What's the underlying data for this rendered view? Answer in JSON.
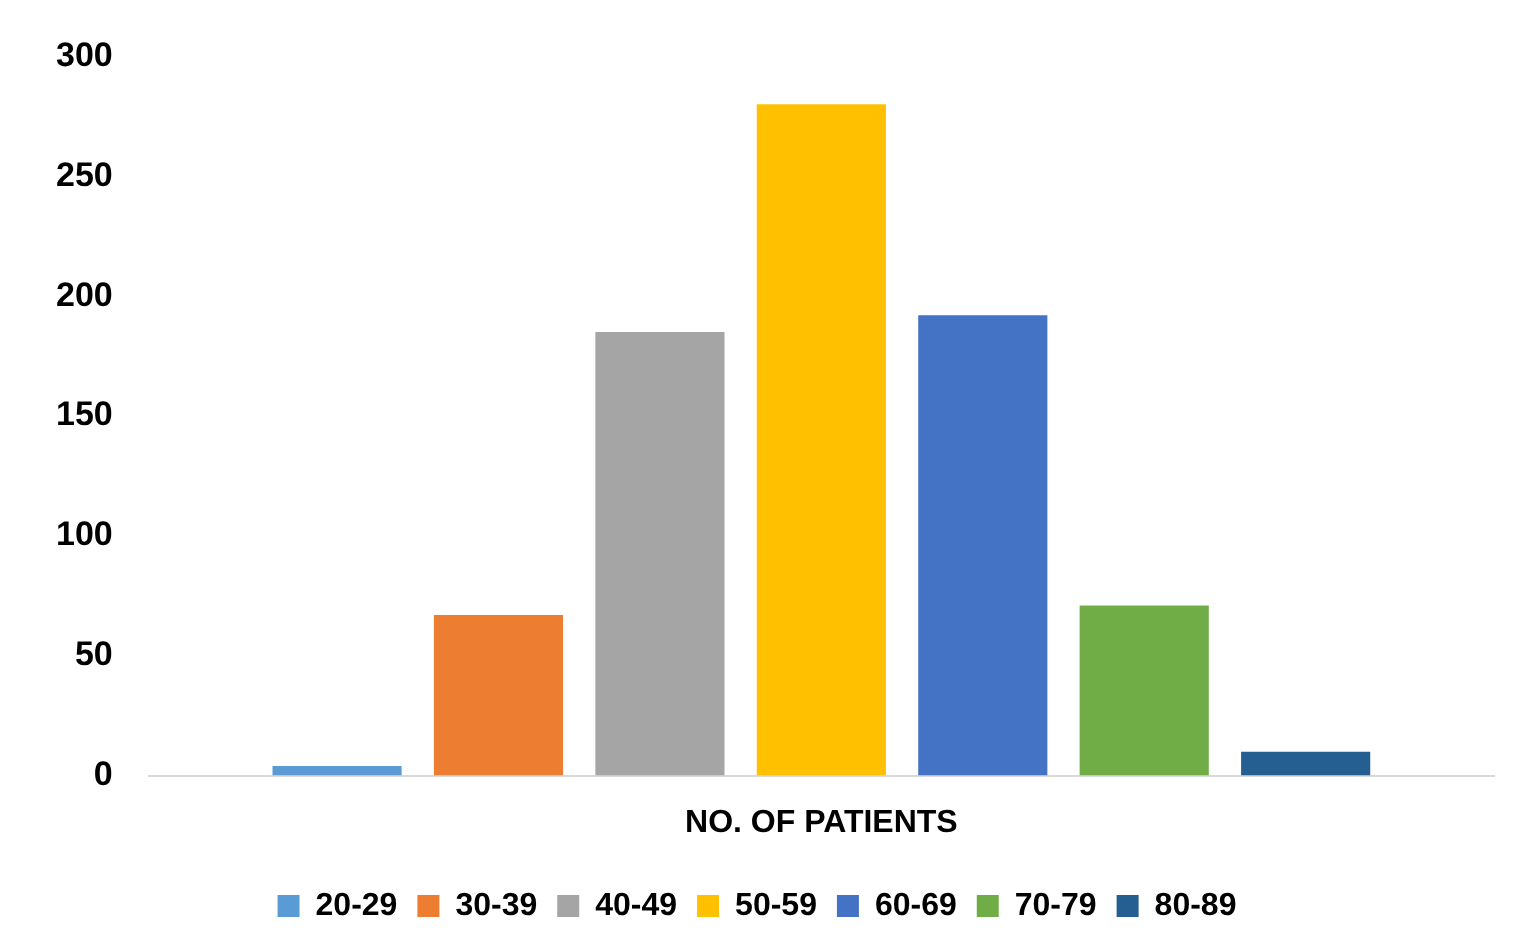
{
  "chart_data": {
    "type": "bar",
    "categories": [
      "NO. OF PATIENTS"
    ],
    "series": [
      {
        "name": "20-29",
        "color": "#5b9bd5",
        "values": [
          4
        ]
      },
      {
        "name": "30-39",
        "color": "#ed7d31",
        "values": [
          67
        ]
      },
      {
        "name": "40-49",
        "color": "#a5a5a5",
        "values": [
          185
        ]
      },
      {
        "name": "50-59",
        "color": "#ffc000",
        "values": [
          280
        ]
      },
      {
        "name": "60-69",
        "color": "#4472c4",
        "values": [
          192
        ]
      },
      {
        "name": "70-79",
        "color": "#70ad47",
        "values": [
          71
        ]
      },
      {
        "name": "80-89",
        "color": "#255e91",
        "values": [
          10
        ]
      }
    ],
    "ylim": [
      0,
      300
    ],
    "yticks": [
      0,
      50,
      100,
      150,
      200,
      250,
      300
    ],
    "grid": false,
    "legend": "bottom"
  }
}
